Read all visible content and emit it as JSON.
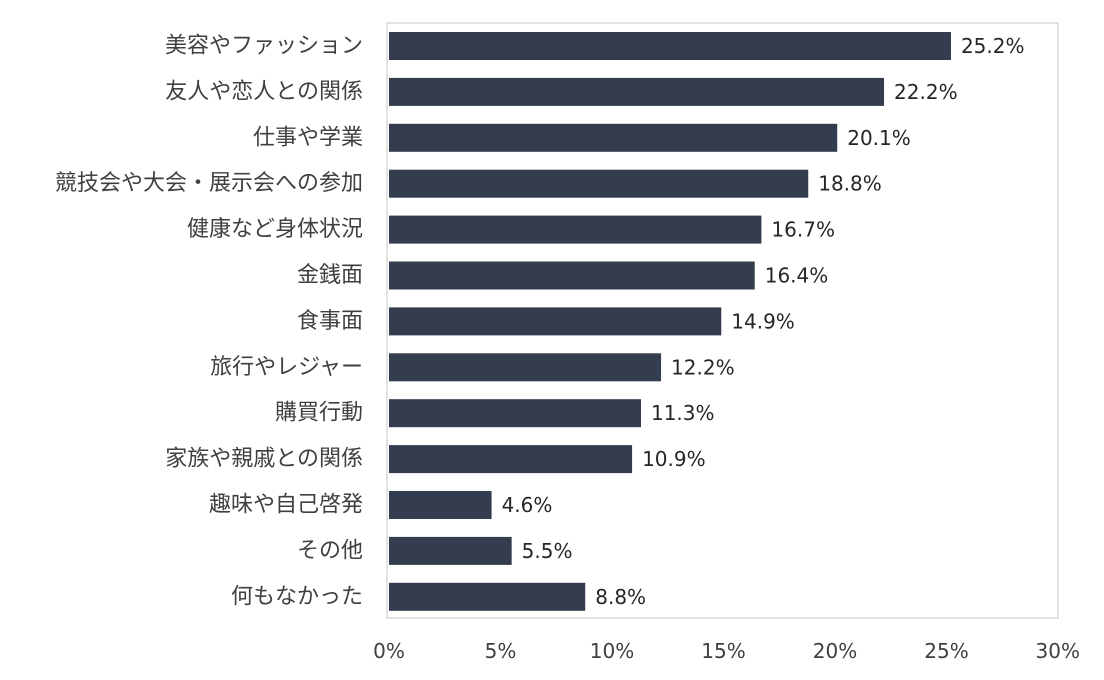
{
  "chart_data": {
    "type": "bar",
    "orientation": "horizontal",
    "title": "",
    "xlabel": "",
    "ylabel": "",
    "categories": [
      "美容やファッション",
      "友人や恋人との関係",
      "仕事や学業",
      "競技会や大会・展示会への参加",
      "健康など身体状況",
      "金銭面",
      "食事面",
      "旅行やレジャー",
      "購買行動",
      "家族や親戚との関係",
      "趣味や自己啓発",
      "その他",
      "何もなかった"
    ],
    "values": [
      25.2,
      22.2,
      20.1,
      18.8,
      16.7,
      16.4,
      14.9,
      12.2,
      11.3,
      10.9,
      4.6,
      5.5,
      8.8
    ],
    "value_labels": [
      "25.2%",
      "22.2%",
      "20.1%",
      "18.8%",
      "16.7%",
      "16.4%",
      "14.9%",
      "12.2%",
      "11.3%",
      "10.9%",
      "4.6%",
      "5.5%",
      "8.8%"
    ],
    "xlim": [
      0,
      30
    ],
    "xticks": [
      0,
      5,
      10,
      15,
      20,
      25,
      30
    ],
    "xtick_labels": [
      "0%",
      "5%",
      "10%",
      "15%",
      "20%",
      "25%",
      "30%"
    ],
    "bar_color": "#333d4e",
    "grid": false,
    "legend": "none"
  }
}
